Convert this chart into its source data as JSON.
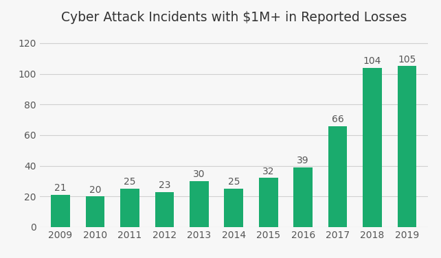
{
  "title": "Cyber Attack Incidents with $1M+ in Reported Losses",
  "years": [
    "2009",
    "2010",
    "2011",
    "2012",
    "2013",
    "2014",
    "2015",
    "2016",
    "2017",
    "2018",
    "2019"
  ],
  "values": [
    21,
    20,
    25,
    23,
    30,
    25,
    32,
    39,
    66,
    104,
    105
  ],
  "bar_color": "#1aab6d",
  "background_color": "#f7f7f7",
  "ylim": [
    0,
    128
  ],
  "yticks": [
    0,
    20,
    40,
    60,
    80,
    100,
    120
  ],
  "title_fontsize": 13.5,
  "tick_fontsize": 10,
  "label_fontsize": 10,
  "grid_color": "#d0d0d0",
  "text_color": "#555555",
  "bar_width": 0.55
}
